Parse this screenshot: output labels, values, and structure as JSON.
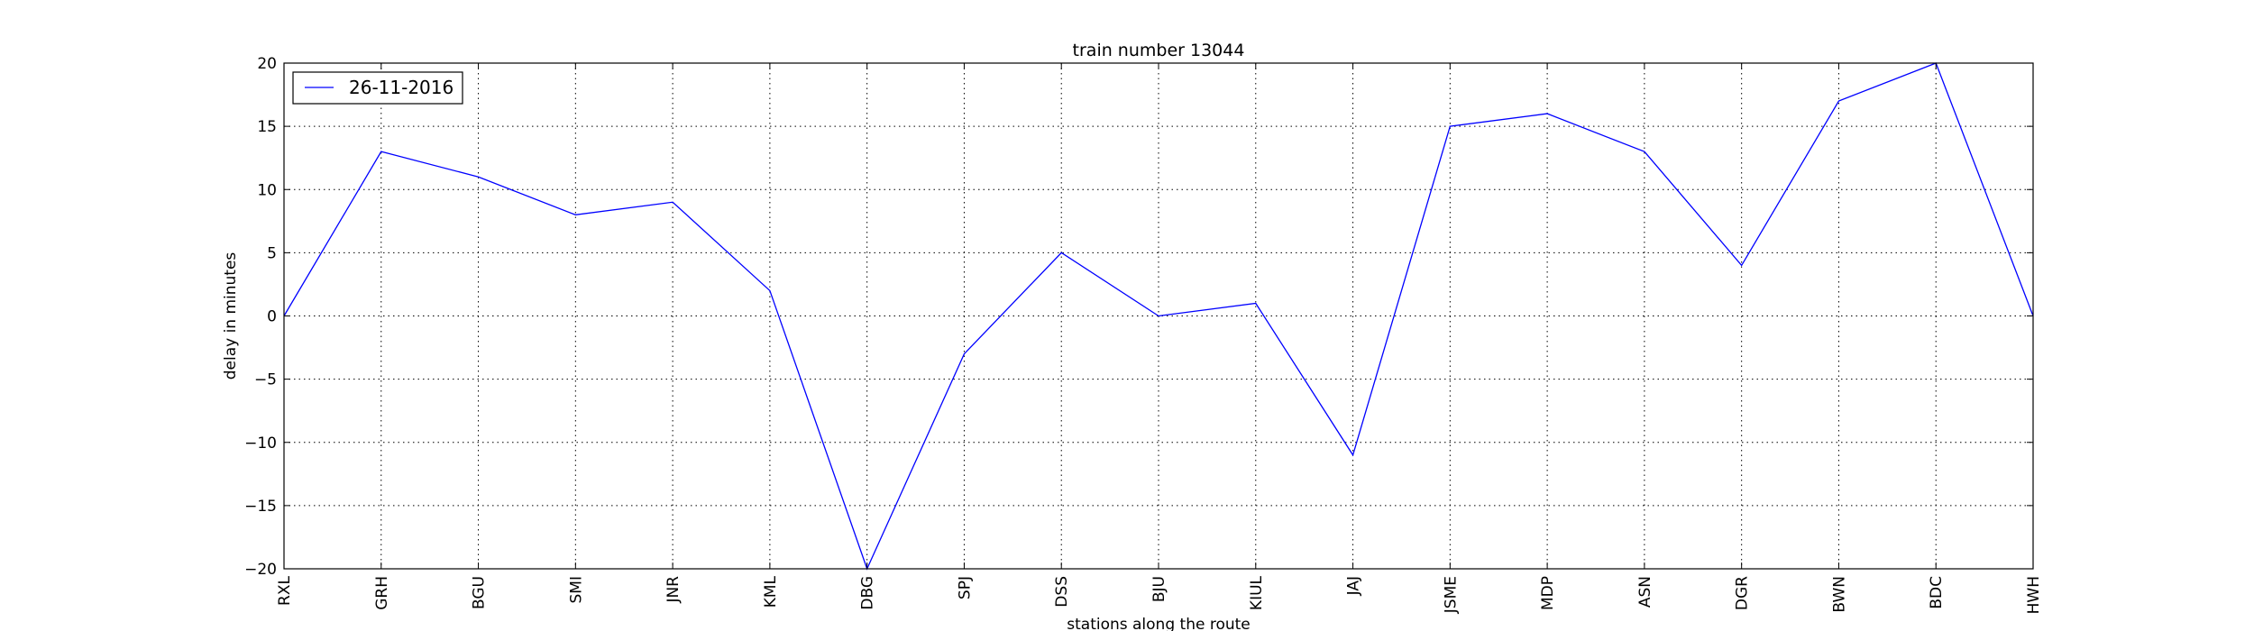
{
  "chart_data": {
    "type": "line",
    "title": "train number 13044",
    "xlabel": "stations along the route",
    "ylabel": "delay in minutes",
    "categories": [
      "RXL",
      "GRH",
      "BGU",
      "SMI",
      "JNR",
      "KML",
      "DBG",
      "SPJ",
      "DSS",
      "BJU",
      "KIUL",
      "JAJ",
      "JSME",
      "MDP",
      "ASN",
      "DGR",
      "BWN",
      "BDC",
      "HWH"
    ],
    "series": [
      {
        "name": "26-11-2016",
        "color": "#0000ff",
        "values": [
          0,
          13,
          11,
          8,
          9,
          2,
          -20,
          -3,
          5,
          0,
          1,
          -11,
          15,
          16,
          13,
          4,
          17,
          20,
          0
        ]
      }
    ],
    "ylim": [
      -20,
      20
    ],
    "yticks": [
      "20",
      "15",
      "10",
      "5",
      "0",
      "−5",
      "−10",
      "−15",
      "−20"
    ],
    "grid": true,
    "legend_position": "top-left"
  }
}
